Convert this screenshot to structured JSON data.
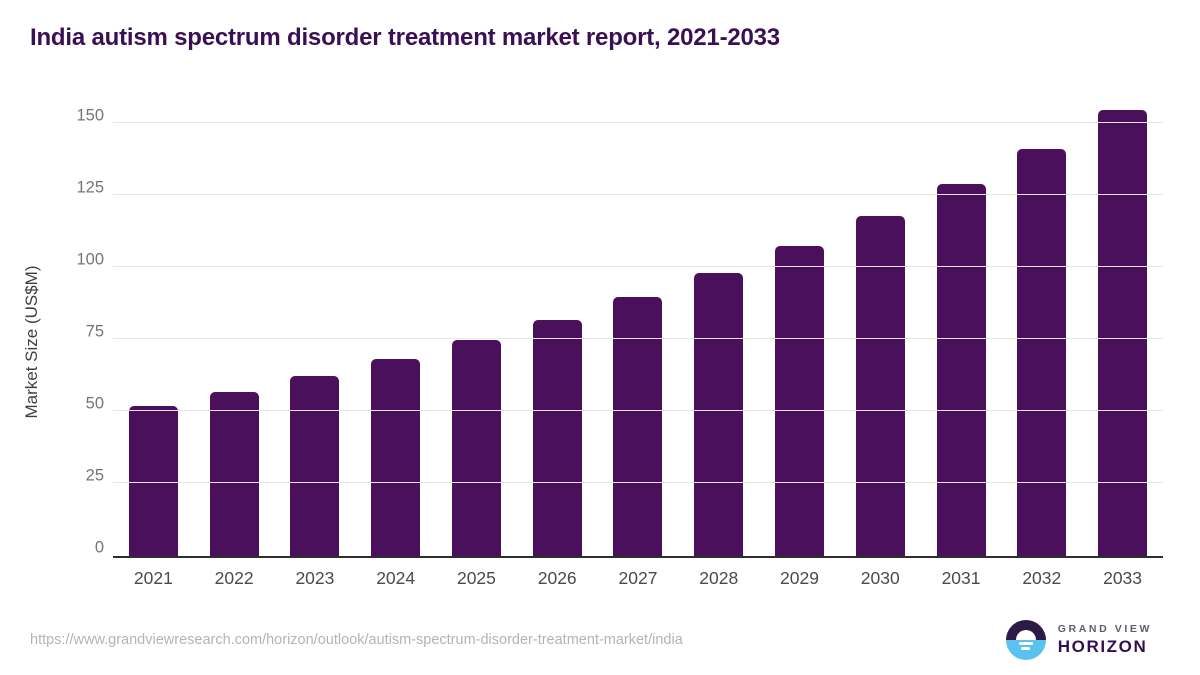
{
  "title": "India autism spectrum disorder treatment market report, 2021-2033",
  "chart_data": {
    "type": "bar",
    "title": "India autism spectrum disorder treatment market report, 2021-2033",
    "categories": [
      "2021",
      "2022",
      "2023",
      "2024",
      "2025",
      "2026",
      "2027",
      "2028",
      "2029",
      "2030",
      "2031",
      "2032",
      "2033"
    ],
    "values": [
      52.0,
      56.9,
      62.4,
      68.3,
      74.8,
      81.9,
      89.6,
      98.1,
      107.5,
      117.7,
      128.9,
      141.1,
      154.5
    ],
    "xlabel": "",
    "ylabel": "Market Size (US$M)",
    "ylim": [
      0,
      160
    ],
    "yticks": [
      0,
      25,
      50,
      75,
      100,
      125,
      150
    ],
    "grid": true,
    "legend": "none",
    "bar_color": "#4a105c"
  },
  "footer": {
    "source_url": "https://www.grandviewresearch.com/horizon/outlook/autism-spectrum-disorder-treatment-market/india",
    "brand_line1": "GRAND VIEW",
    "brand_line2": "HORIZON"
  },
  "colors": {
    "title_text": "#3b0f54",
    "bar": "#4a105c",
    "gridline": "#e7e7e7",
    "axis_line": "#2d2d2d",
    "x_tick_text": "#4a4a4a",
    "y_tick_text": "#757575",
    "y_axis_title_text": "#3f3f3f",
    "url_text": "#b4b4b4",
    "logo_dark": "#2e1a47",
    "logo_blue": "#5ac2ef"
  }
}
